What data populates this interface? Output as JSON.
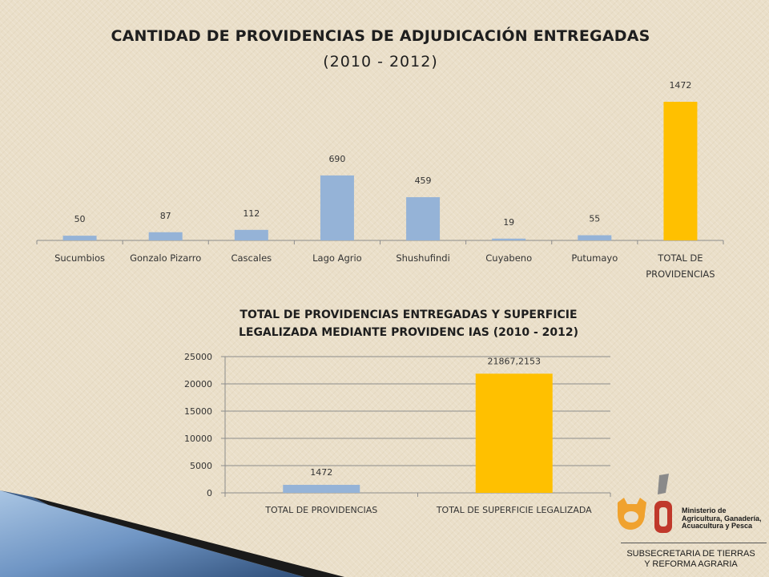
{
  "chart_data": [
    {
      "type": "bar",
      "title": "CANTIDAD DE PROVIDENCIAS DE ADJUDICACIÓN ENTREGADAS",
      "subtitle": "(2010 - 2012)",
      "categories": [
        "Sucumbios",
        "Gonzalo Pizarro",
        "Cascales",
        "Lago Agrio",
        "Shushufindi",
        "Cuyabeno",
        "Putumayo",
        "TOTAL DE PROVIDENCIAS"
      ],
      "category_lines": [
        [
          "Sucumbios"
        ],
        [
          "Gonzalo Pizarro"
        ],
        [
          "Cascales"
        ],
        [
          "Lago Agrio"
        ],
        [
          "Shushufindi"
        ],
        [
          "Cuyabeno"
        ],
        [
          "Putumayo"
        ],
        [
          "TOTAL DE",
          "PROVIDENCIAS"
        ]
      ],
      "values": [
        50,
        87,
        112,
        690,
        459,
        19,
        55,
        1472
      ],
      "data_labels": [
        "50",
        "87",
        "112",
        "690",
        "459",
        "19",
        "55",
        "1472"
      ],
      "colors": [
        "#95b3d7",
        "#95b3d7",
        "#95b3d7",
        "#95b3d7",
        "#95b3d7",
        "#95b3d7",
        "#95b3d7",
        "#ffc000"
      ],
      "ylim": [
        0,
        1472
      ],
      "grid": false,
      "legend": "none"
    },
    {
      "type": "bar",
      "title": "TOTAL DE PROVIDENCIAS ENTREGADAS Y SUPERFICIE LEGALIZADA MEDIANTE PROVIDENC IAS (2010 - 2012)",
      "title_lines": [
        "TOTAL DE PROVIDENCIAS ENTREGADAS Y SUPERFICIE",
        "LEGALIZADA MEDIANTE PROVIDENC IAS (2010 - 2012)"
      ],
      "categories": [
        "TOTAL DE PROVIDENCIAS",
        "TOTAL DE SUPERFICIE LEGALIZADA"
      ],
      "values": [
        1472,
        21867.2153
      ],
      "data_labels": [
        "1472",
        "21867,2153"
      ],
      "colors": [
        "#95b3d7",
        "#ffc000"
      ],
      "ylim": [
        0,
        25000
      ],
      "yticks": [
        0,
        5000,
        10000,
        15000,
        20000,
        25000
      ],
      "ytick_labels": [
        "0",
        "5000",
        "10000",
        "15000",
        "20000",
        "25000"
      ],
      "grid": true,
      "legend": "none"
    }
  ],
  "logo": {
    "ministry_lines": [
      "Ministerio de",
      "Agricultura, Ganadería,",
      "Acuacultura y Pesca"
    ],
    "subsecretaria_lines": [
      "SUBSECRETARIA DE TIERRAS",
      "Y REFORMA AGRARIA"
    ],
    "colors": {
      "orange": "#f0a22e",
      "red": "#c0392b",
      "gray": "#777777"
    }
  }
}
